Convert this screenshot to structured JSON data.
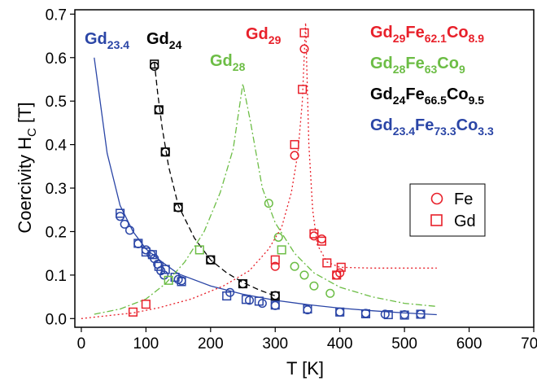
{
  "chart_data": {
    "type": "scatter",
    "title": "",
    "xlabel": "T [K]",
    "ylabel_main": "Coercivity  H",
    "ylabel_sub": "C",
    "ylabel_unit": " [T]",
    "xlim": [
      -10,
      700
    ],
    "ylim": [
      -0.02,
      0.71
    ],
    "xticks": [
      0,
      100,
      200,
      300,
      400,
      500,
      600,
      700
    ],
    "yticks": [
      0.0,
      0.1,
      0.2,
      0.3,
      0.4,
      0.5,
      0.6,
      0.7
    ],
    "grid": false,
    "legend_position": "right",
    "legend": [
      {
        "label": "Fe",
        "marker": "circle"
      },
      {
        "label": "Gd",
        "marker": "square"
      }
    ],
    "colors": {
      "blue": "#2a45a6",
      "black": "#000000",
      "green": "#6cbd45",
      "red": "#e8202a"
    },
    "curve_labels": [
      {
        "main": "Gd",
        "sub": "23.4",
        "color": "#2a45a6"
      },
      {
        "main": "Gd",
        "sub": "24",
        "color": "#000000"
      },
      {
        "main": "Gd",
        "sub": "28",
        "color": "#6cbd45"
      },
      {
        "main": "Gd",
        "sub": "29",
        "color": "#e8202a"
      }
    ],
    "compositions": [
      {
        "parts": [
          [
            "Gd",
            "29"
          ],
          [
            "Fe",
            "62.1"
          ],
          [
            "Co",
            "8.9"
          ]
        ],
        "color": "#e8202a"
      },
      {
        "parts": [
          [
            "Gd",
            "28"
          ],
          [
            "Fe",
            "63"
          ],
          [
            "Co",
            "9"
          ]
        ],
        "color": "#6cbd45"
      },
      {
        "parts": [
          [
            "Gd",
            "24"
          ],
          [
            "Fe",
            "66.5"
          ],
          [
            "Co",
            "9.5"
          ]
        ],
        "color": "#000000"
      },
      {
        "parts": [
          [
            "Gd",
            "23.4"
          ],
          [
            "Fe",
            "73.3"
          ],
          [
            "Co",
            "3.3"
          ]
        ],
        "color": "#2a45a6"
      }
    ],
    "series": [
      {
        "name": "Gd23.4Fe73.3Co3.3",
        "color": "#2a45a6",
        "fit_style": "solid",
        "fit": [
          [
            20,
            0.6
          ],
          [
            40,
            0.38
          ],
          [
            60,
            0.26
          ],
          [
            80,
            0.2
          ],
          [
            100,
            0.16
          ],
          [
            125,
            0.13
          ],
          [
            150,
            0.103
          ],
          [
            200,
            0.075
          ],
          [
            250,
            0.056
          ],
          [
            300,
            0.042
          ],
          [
            350,
            0.032
          ],
          [
            400,
            0.024
          ],
          [
            450,
            0.018
          ],
          [
            500,
            0.013
          ],
          [
            550,
            0.009
          ]
        ],
        "fe": [
          [
            60,
            0.235
          ],
          [
            67,
            0.217
          ],
          [
            75,
            0.203
          ],
          [
            88,
            0.172
          ],
          [
            100,
            0.158
          ],
          [
            108,
            0.148
          ],
          [
            113,
            0.138
          ],
          [
            118,
            0.125
          ],
          [
            123,
            0.11
          ],
          [
            128,
            0.1
          ],
          [
            150,
            0.09
          ],
          [
            155,
            0.087
          ],
          [
            230,
            0.06
          ],
          [
            260,
            0.042
          ],
          [
            280,
            0.035
          ],
          [
            300,
            0.03
          ],
          [
            350,
            0.02
          ],
          [
            400,
            0.015
          ],
          [
            440,
            0.012
          ],
          [
            470,
            0.01
          ],
          [
            500,
            0.009
          ],
          [
            525,
            0.01
          ]
        ],
        "gd": [
          [
            60,
            0.242
          ],
          [
            88,
            0.173
          ],
          [
            100,
            0.153
          ],
          [
            110,
            0.147
          ],
          [
            120,
            0.12
          ],
          [
            130,
            0.113
          ],
          [
            145,
            0.095
          ],
          [
            155,
            0.085
          ],
          [
            225,
            0.052
          ],
          [
            255,
            0.044
          ],
          [
            275,
            0.04
          ],
          [
            300,
            0.031
          ],
          [
            350,
            0.022
          ],
          [
            400,
            0.015
          ],
          [
            440,
            0.011
          ],
          [
            475,
            0.009
          ],
          [
            500,
            0.008
          ],
          [
            525,
            0.01
          ]
        ]
      },
      {
        "name": "Gd24Fe66.5Co9.5",
        "color": "#000000",
        "fit_style": "dashed",
        "fit": [
          [
            113,
            0.59
          ],
          [
            118,
            0.52
          ],
          [
            125,
            0.44
          ],
          [
            135,
            0.35
          ],
          [
            150,
            0.26
          ],
          [
            175,
            0.185
          ],
          [
            200,
            0.135
          ],
          [
            225,
            0.105
          ],
          [
            250,
            0.083
          ],
          [
            275,
            0.066
          ],
          [
            300,
            0.052
          ]
        ],
        "fe": [
          [
            113,
            0.58
          ],
          [
            120,
            0.48
          ],
          [
            130,
            0.383
          ],
          [
            150,
            0.255
          ],
          [
            200,
            0.135
          ],
          [
            250,
            0.08
          ],
          [
            300,
            0.053
          ]
        ],
        "gd": [
          [
            113,
            0.585
          ],
          [
            120,
            0.48
          ],
          [
            130,
            0.383
          ],
          [
            150,
            0.256
          ],
          [
            200,
            0.135
          ],
          [
            250,
            0.08
          ],
          [
            300,
            0.052
          ]
        ]
      },
      {
        "name": "Gd28Fe63Co9",
        "color": "#6cbd45",
        "fit_style": "dashdot",
        "fit": [
          [
            20,
            0.01
          ],
          [
            60,
            0.022
          ],
          [
            100,
            0.045
          ],
          [
            130,
            0.08
          ],
          [
            160,
            0.13
          ],
          [
            190,
            0.2
          ],
          [
            215,
            0.29
          ],
          [
            235,
            0.39
          ],
          [
            250,
            0.54
          ],
          [
            262,
            0.45
          ],
          [
            280,
            0.3
          ],
          [
            300,
            0.22
          ],
          [
            330,
            0.15
          ],
          [
            360,
            0.105
          ],
          [
            400,
            0.072
          ],
          [
            450,
            0.05
          ],
          [
            500,
            0.035
          ],
          [
            550,
            0.028
          ]
        ],
        "fe": [
          [
            290,
            0.265
          ],
          [
            305,
            0.187
          ],
          [
            330,
            0.12
          ],
          [
            345,
            0.1
          ],
          [
            360,
            0.075
          ],
          [
            385,
            0.058
          ]
        ],
        "gd": [
          [
            135,
            0.088
          ],
          [
            183,
            0.158
          ],
          [
            310,
            0.158
          ]
        ]
      },
      {
        "name": "Gd29Fe62.1Co8.9",
        "color": "#e8202a",
        "fit_style": "dotted",
        "fit": [
          [
            0,
            0.0
          ],
          [
            80,
            0.013
          ],
          [
            120,
            0.025
          ],
          [
            170,
            0.045
          ],
          [
            220,
            0.075
          ],
          [
            260,
            0.11
          ],
          [
            290,
            0.16
          ],
          [
            310,
            0.21
          ],
          [
            325,
            0.29
          ],
          [
            335,
            0.38
          ],
          [
            342,
            0.5
          ],
          [
            347,
            0.68
          ],
          [
            352,
            0.4
          ],
          [
            358,
            0.25
          ],
          [
            365,
            0.17
          ],
          [
            380,
            0.13
          ],
          [
            400,
            0.118
          ],
          [
            450,
            0.116
          ],
          [
            550,
            0.116
          ]
        ],
        "fe": [
          [
            300,
            0.12
          ],
          [
            330,
            0.375
          ],
          [
            345,
            0.62
          ],
          [
            360,
            0.19
          ],
          [
            372,
            0.183
          ],
          [
            395,
            0.1
          ],
          [
            400,
            0.105
          ]
        ],
        "gd": [
          [
            80,
            0.015
          ],
          [
            100,
            0.033
          ],
          [
            300,
            0.135
          ],
          [
            330,
            0.4
          ],
          [
            342,
            0.527
          ],
          [
            345,
            0.657
          ],
          [
            360,
            0.195
          ],
          [
            372,
            0.178
          ],
          [
            380,
            0.128
          ],
          [
            395,
            0.1
          ],
          [
            402,
            0.118
          ]
        ]
      }
    ]
  }
}
